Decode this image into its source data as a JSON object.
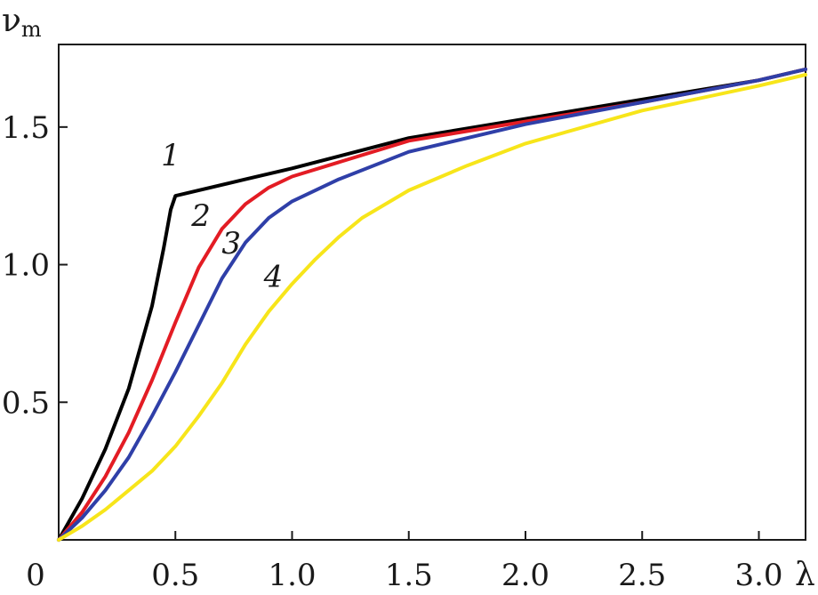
{
  "chart_data": {
    "type": "line",
    "xlabel": "λ",
    "ylabel": "ν",
    "ylabel_sub": "m",
    "xlim": [
      0,
      3.2
    ],
    "ylim": [
      0,
      1.8
    ],
    "x_ticks": [
      {
        "value": 0,
        "label": "0"
      },
      {
        "value": 0.5,
        "label": "0.5"
      },
      {
        "value": 1.0,
        "label": "1.0"
      },
      {
        "value": 1.5,
        "label": "1.5"
      },
      {
        "value": 2.0,
        "label": "2.0"
      },
      {
        "value": 2.5,
        "label": "2.5"
      },
      {
        "value": 3.0,
        "label": "3.0"
      }
    ],
    "y_ticks": [
      {
        "value": 0.5,
        "label": "0.5"
      },
      {
        "value": 1.0,
        "label": "1.0"
      },
      {
        "value": 1.5,
        "label": "1.5"
      }
    ],
    "grid": false,
    "series": [
      {
        "label": "1",
        "color": "#000000",
        "label_at": [
          0.48,
          1.36
        ],
        "points": [
          [
            0,
            0
          ],
          [
            0.1,
            0.15
          ],
          [
            0.2,
            0.33
          ],
          [
            0.3,
            0.55
          ],
          [
            0.4,
            0.85
          ],
          [
            0.45,
            1.06
          ],
          [
            0.48,
            1.2
          ],
          [
            0.5,
            1.25
          ],
          [
            0.8,
            1.31
          ],
          [
            1.0,
            1.35
          ],
          [
            1.5,
            1.46
          ],
          [
            2.0,
            1.53
          ],
          [
            2.5,
            1.6
          ],
          [
            3.0,
            1.67
          ],
          [
            3.2,
            1.71
          ]
        ]
      },
      {
        "label": "2",
        "color": "#e31c24",
        "label_at": [
          0.61,
          1.14
        ],
        "points": [
          [
            0,
            0
          ],
          [
            0.1,
            0.1
          ],
          [
            0.2,
            0.23
          ],
          [
            0.3,
            0.39
          ],
          [
            0.4,
            0.58
          ],
          [
            0.5,
            0.79
          ],
          [
            0.6,
            0.99
          ],
          [
            0.7,
            1.13
          ],
          [
            0.8,
            1.22
          ],
          [
            0.9,
            1.28
          ],
          [
            1.0,
            1.32
          ],
          [
            1.5,
            1.45
          ],
          [
            2.0,
            1.52
          ],
          [
            2.5,
            1.59
          ],
          [
            3.0,
            1.67
          ],
          [
            3.2,
            1.71
          ]
        ]
      },
      {
        "label": "3",
        "color": "#2f3fa8",
        "label_at": [
          0.74,
          1.04
        ],
        "points": [
          [
            0,
            0
          ],
          [
            0.1,
            0.08
          ],
          [
            0.2,
            0.18
          ],
          [
            0.3,
            0.3
          ],
          [
            0.4,
            0.45
          ],
          [
            0.5,
            0.61
          ],
          [
            0.6,
            0.78
          ],
          [
            0.7,
            0.95
          ],
          [
            0.8,
            1.08
          ],
          [
            0.9,
            1.17
          ],
          [
            1.0,
            1.23
          ],
          [
            1.2,
            1.31
          ],
          [
            1.5,
            1.41
          ],
          [
            2.0,
            1.51
          ],
          [
            2.5,
            1.59
          ],
          [
            3.0,
            1.67
          ],
          [
            3.2,
            1.71
          ]
        ]
      },
      {
        "label": "4",
        "color": "#f7e51a",
        "label_at": [
          0.92,
          0.92
        ],
        "points": [
          [
            0,
            0
          ],
          [
            0.1,
            0.05
          ],
          [
            0.2,
            0.11
          ],
          [
            0.3,
            0.18
          ],
          [
            0.4,
            0.25
          ],
          [
            0.5,
            0.34
          ],
          [
            0.6,
            0.45
          ],
          [
            0.7,
            0.57
          ],
          [
            0.8,
            0.71
          ],
          [
            0.9,
            0.83
          ],
          [
            1.0,
            0.93
          ],
          [
            1.1,
            1.02
          ],
          [
            1.2,
            1.1
          ],
          [
            1.3,
            1.17
          ],
          [
            1.5,
            1.27
          ],
          [
            1.75,
            1.36
          ],
          [
            2.0,
            1.44
          ],
          [
            2.5,
            1.56
          ],
          [
            3.0,
            1.65
          ],
          [
            3.2,
            1.69
          ]
        ]
      }
    ]
  }
}
